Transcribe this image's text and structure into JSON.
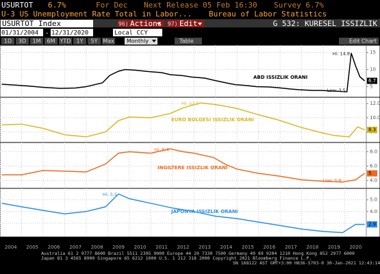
{
  "ui": {
    "ticker": "USURTOT",
    "last": "6.7%",
    "period": "For Dec",
    "next_release": "Next Release 05 Feb 16:30",
    "survey": "Survey 6.7%",
    "description": "U-3 US Unemployment Rate Total in Labor...",
    "source": "Bureau of Labor Statistics",
    "security": "USURTOT Index",
    "actions_num": "96)",
    "actions": "Actions",
    "edit_num": "97)",
    "edit": "Edit",
    "page_title": "G 532: KURESEL ISSIZLIK",
    "start_date": "01/31/2004",
    "dash": "-",
    "end_date": "12/31/2020",
    "currency": "Local CCY",
    "ranges": [
      "1D",
      "3D",
      "1M",
      "6M",
      "YTD",
      "1Y",
      "5Y",
      "Max"
    ],
    "frequency": "Monthly",
    "table": "Table",
    "edit_chart": "Edit Chart",
    "footer": [
      "Australia 61 2 9777 8600 Brazil 5511 2395 9000 Europe 44 20 7330 7500 Germany 49 69 9204 1210 Hong Kong 852 2977 6000",
      "Japan 81 3 4565 8900         Singapore 65 6212 1000         U.S. 1 212 318 2000         Copyright 2021 Bloomberg Finance L.P.",
      "SN 168122 AST  GMT+3:00 H836-5703-0 30-Jan-2021 12:43:14"
    ]
  },
  "chart_data": [
    {
      "type": "line",
      "xlim": [
        2004,
        2021
      ],
      "ylim": [
        2.5,
        16.5
      ],
      "yticks": [
        5,
        10,
        15
      ],
      "grid": true,
      "x": [
        2004.08,
        2004.6,
        2005.3,
        2006.0,
        2006.8,
        2007.5,
        2008.0,
        2008.75,
        2009.1,
        2009.5,
        2009.8,
        2010.3,
        2010.9,
        2011.5,
        2011.9,
        2012.5,
        2012.9,
        2013.5,
        2013.9,
        2014.5,
        2014.9,
        2015.5,
        2015.9,
        2016.5,
        2016.9,
        2017.5,
        2017.9,
        2018.5,
        2018.9,
        2019.5,
        2020.1,
        2020.3,
        2020.5,
        2020.7,
        2020.92
      ],
      "series": [
        {
          "name": "ABD ISSIZLIK ORANI",
          "color": "#000000",
          "values": [
            5.7,
            5.5,
            5.2,
            4.8,
            4.5,
            4.6,
            5.0,
            6.1,
            8.3,
            9.5,
            10.0,
            9.8,
            9.4,
            9.1,
            8.5,
            8.2,
            7.8,
            7.5,
            6.9,
            6.1,
            5.6,
            5.3,
            5.0,
            4.9,
            4.7,
            4.3,
            4.1,
            3.9,
            3.9,
            3.7,
            3.5,
            14.8,
            11.1,
            7.9,
            6.7
          ]
        }
      ],
      "annotations": [
        {
          "text": "Hi: 14.8",
          "x": 2020.3,
          "y": 14.8
        },
        {
          "text": "Low: 3.5",
          "x": 2020.1,
          "y": 3.5
        }
      ]
    },
    {
      "type": "line",
      "xlim": [
        2004,
        2021
      ],
      "ylim": [
        6.8,
        12.6
      ],
      "yticks": [
        {
          "value": 8,
          "label": "8.0"
        },
        {
          "value": 10,
          "label": "10.0"
        },
        {
          "value": 12,
          "label": "12.0"
        }
      ],
      "grid": true,
      "x": [
        2004.08,
        2005.0,
        2006.0,
        2007.0,
        2008.0,
        2008.9,
        2009.5,
        2010.0,
        2011.0,
        2011.9,
        2012.5,
        2013.3,
        2013.9,
        2014.5,
        2015.0,
        2015.9,
        2016.9,
        2017.9,
        2018.9,
        2019.5,
        2020.2,
        2020.6,
        2020.92
      ],
      "series": [
        {
          "name": "EURO BOLGESI ISSIZLIK ORANI",
          "color": "#d9b820",
          "values": [
            9.0,
            9.1,
            8.5,
            7.6,
            7.3,
            8.0,
            9.6,
            10.1,
            10.0,
            10.6,
            11.4,
            12.1,
            11.9,
            11.6,
            11.3,
            10.5,
            9.7,
            8.7,
            7.9,
            7.5,
            7.3,
            8.7,
            8.3
          ]
        }
      ],
      "annotations": [
        {
          "text": "Hi: 12.1",
          "x": 2013.3,
          "y": 12.1
        }
      ]
    },
    {
      "type": "line",
      "xlim": [
        2004,
        2021
      ],
      "ylim": [
        3.2,
        9.0
      ],
      "yticks": [
        {
          "value": 4,
          "label": "4.0"
        },
        {
          "value": 6,
          "label": "6.0"
        },
        {
          "value": 8,
          "label": "8.0"
        }
      ],
      "grid": true,
      "x": [
        2004.08,
        2005.0,
        2006.0,
        2007.0,
        2008.0,
        2008.9,
        2009.5,
        2010.0,
        2011.0,
        2011.9,
        2012.5,
        2013.0,
        2013.9,
        2014.5,
        2015.0,
        2016.0,
        2017.0,
        2018.0,
        2019.0,
        2019.9,
        2020.5,
        2020.92
      ],
      "series": [
        {
          "name": "INGILTERE ISSIZLIK ORANI",
          "color": "#ee6a1c",
          "values": [
            4.8,
            4.8,
            5.4,
            5.3,
            5.2,
            6.3,
            7.8,
            8.0,
            7.8,
            8.4,
            8.0,
            7.8,
            7.2,
            6.2,
            5.6,
            5.0,
            4.6,
            4.1,
            3.9,
            3.8,
            4.1,
            5.0
          ]
        }
      ],
      "annotations": [
        {
          "text": "Hi: 8.4",
          "x": 2011.9,
          "y": 8.4
        },
        {
          "text": "Low: 3.8",
          "x": 2019.9,
          "y": 3.8
        }
      ]
    },
    {
      "type": "line",
      "xlim": [
        2004,
        2021
      ],
      "ylim": [
        2.0,
        5.8
      ],
      "yticks": [
        {
          "value": 3,
          "label": "3.0"
        },
        {
          "value": 4,
          "label": "4.0"
        },
        {
          "value": 5,
          "label": "5.0"
        }
      ],
      "grid": true,
      "x": [
        2004.08,
        2005.0,
        2006.0,
        2007.0,
        2008.0,
        2008.9,
        2009.5,
        2010.0,
        2011.0,
        2012.0,
        2013.0,
        2014.0,
        2015.0,
        2016.0,
        2017.0,
        2018.0,
        2019.0,
        2019.9,
        2020.5,
        2020.92
      ],
      "series": [
        {
          "name": "JAPONYA ISSIZLIK ORANI",
          "color": "#2a8ee8",
          "values": [
            4.7,
            4.4,
            4.1,
            3.8,
            4.0,
            4.4,
            5.5,
            5.1,
            4.7,
            4.3,
            4.0,
            3.6,
            3.4,
            3.1,
            2.8,
            2.5,
            2.3,
            2.2,
            2.9,
            2.9
          ]
        }
      ],
      "annotations": [
        {
          "text": "Hi: 5.5",
          "x": 2009.5,
          "y": 5.5
        }
      ],
      "xticks": [
        {
          "value": 2004.5,
          "label": "2004"
        },
        {
          "value": 2005.5,
          "label": "2005"
        },
        {
          "value": 2006.5,
          "label": "2006"
        },
        {
          "value": 2007.5,
          "label": "2007"
        },
        {
          "value": 2008.5,
          "label": "2008"
        },
        {
          "value": 2009.5,
          "label": "2009"
        },
        {
          "value": 2010.5,
          "label": "2010"
        },
        {
          "value": 2011.5,
          "label": "2011"
        },
        {
          "value": 2012.5,
          "label": "2012"
        },
        {
          "value": 2013.5,
          "label": "2013"
        },
        {
          "value": 2014.5,
          "label": "2014"
        },
        {
          "value": 2015.5,
          "label": "2015"
        },
        {
          "value": 2016.5,
          "label": "2016"
        },
        {
          "value": 2017.5,
          "label": "2017"
        },
        {
          "value": 2018.5,
          "label": "2018"
        },
        {
          "value": 2019.5,
          "label": "2019"
        },
        {
          "value": 2020.5,
          "label": "2020"
        }
      ]
    }
  ]
}
